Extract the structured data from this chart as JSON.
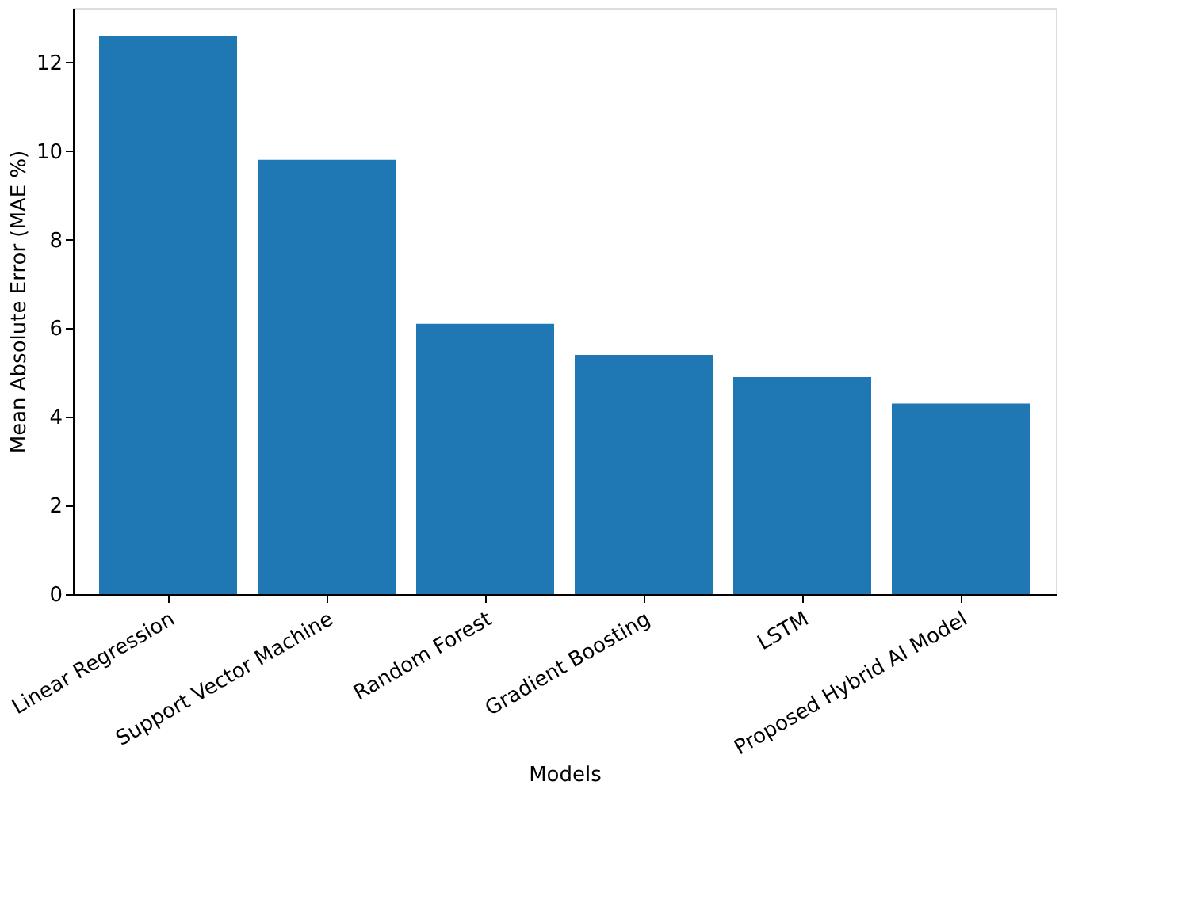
{
  "chart_data": {
    "type": "bar",
    "xlabel": "Models",
    "ylabel": "Mean Absolute Error (MAE %)",
    "categories": [
      "Linear Regression",
      "Support Vector Machine",
      "Random Forest",
      "Gradient Boosting",
      "LSTM",
      "Proposed Hybrid AI Model"
    ],
    "values": [
      12.6,
      9.8,
      6.1,
      5.4,
      4.9,
      4.3
    ],
    "color": "#1f77b4",
    "ylim": [
      0,
      13.23
    ],
    "yticks": [
      0,
      2,
      4,
      6,
      8,
      10,
      12
    ],
    "grid": false
  }
}
